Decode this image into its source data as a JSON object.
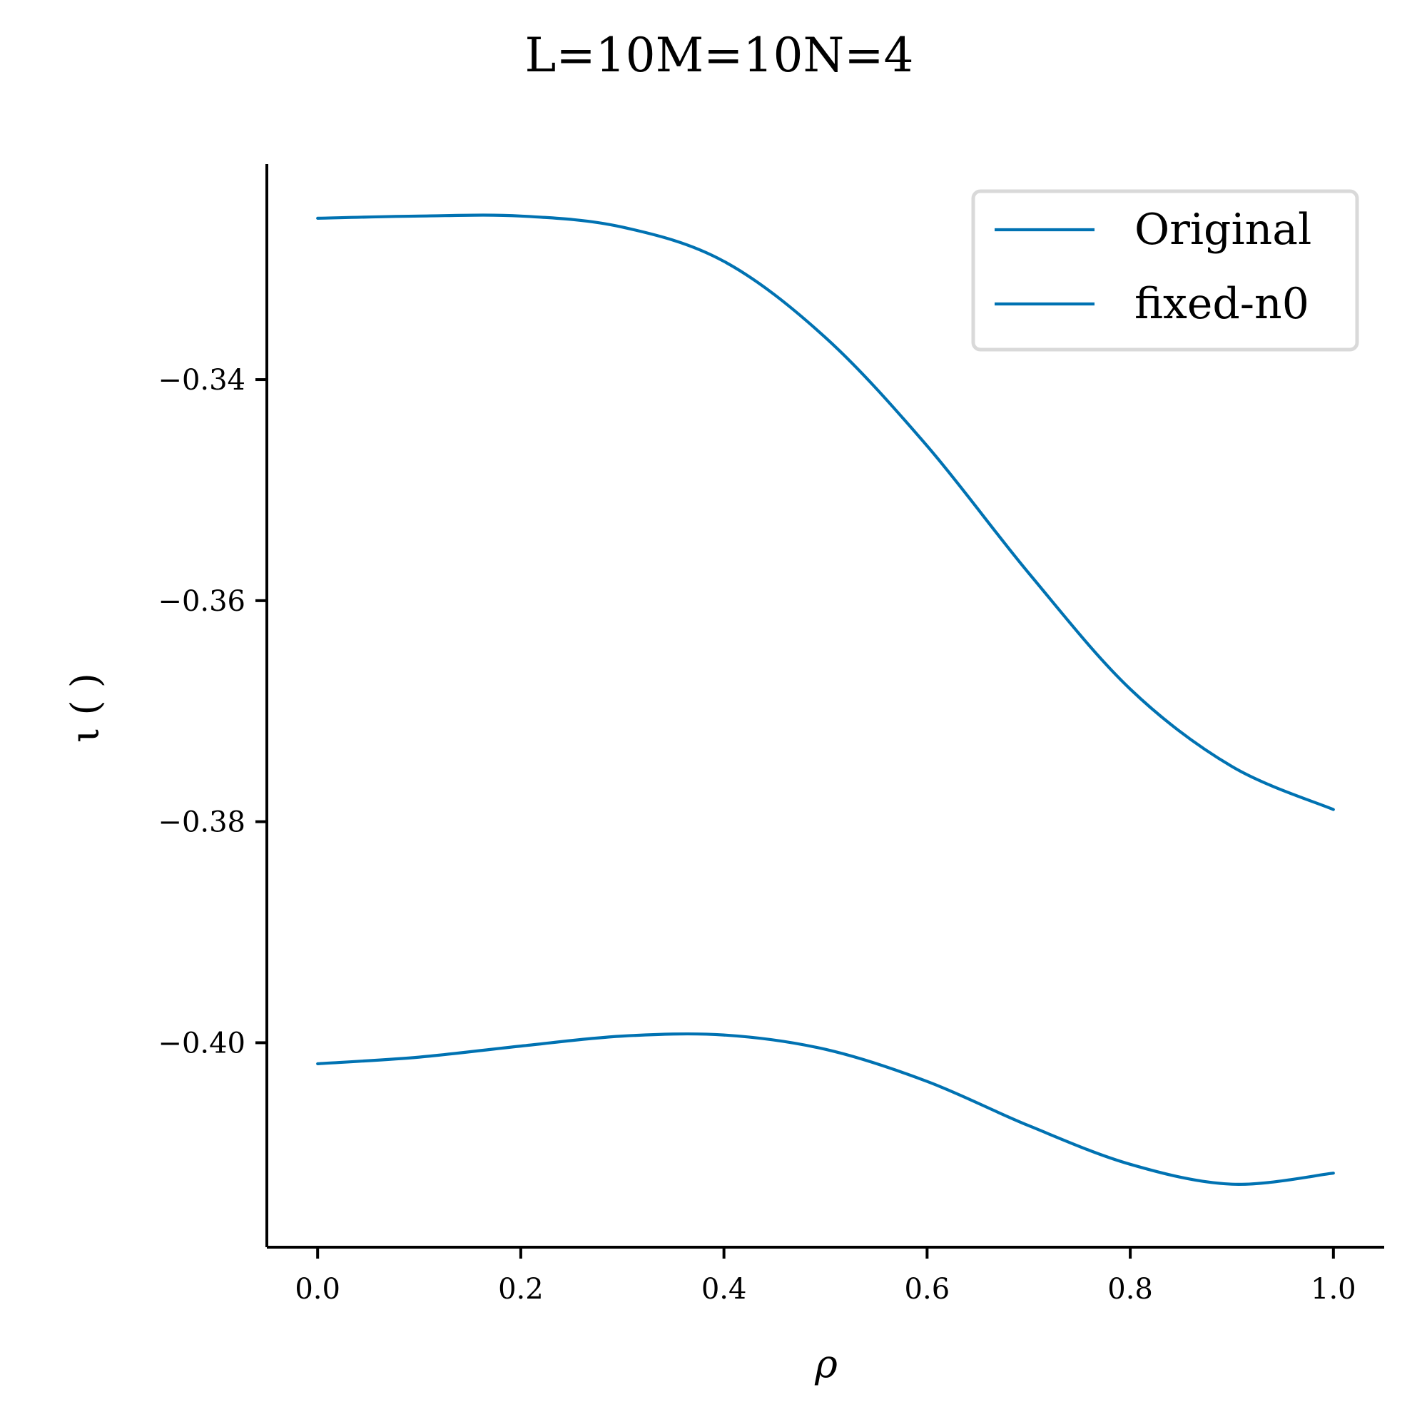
{
  "chart_data": {
    "type": "line",
    "title": "L=10M=10N=4",
    "xlabel": "ρ",
    "ylabel": "ι ( )",
    "xlim": [
      -0.05,
      1.05
    ],
    "ylim": [
      -0.4185,
      -0.3205
    ],
    "xticks": [
      0.0,
      0.2,
      0.4,
      0.6,
      0.8,
      1.0
    ],
    "xtick_labels": [
      "0.0",
      "0.2",
      "0.4",
      "0.6",
      "0.8",
      "1.0"
    ],
    "yticks": [
      -0.34,
      -0.36,
      -0.38,
      -0.4
    ],
    "ytick_labels": [
      "−0.34",
      "−0.36",
      "−0.38",
      "−0.40"
    ],
    "grid": false,
    "legend_position": "top-right",
    "series": [
      {
        "name": "Original",
        "color": "#0072b2",
        "x": [
          0.0,
          0.1,
          0.2,
          0.3,
          0.4,
          0.5,
          0.6,
          0.7,
          0.8,
          0.9,
          1.0
        ],
        "y": [
          -0.3254,
          -0.3252,
          -0.3252,
          -0.3262,
          -0.3293,
          -0.3362,
          -0.346,
          -0.3575,
          -0.368,
          -0.375,
          -0.3789
        ]
      },
      {
        "name": "fixed-n0",
        "color": "#0072b2",
        "x": [
          0.0,
          0.1,
          0.2,
          0.3,
          0.4,
          0.5,
          0.6,
          0.7,
          0.8,
          0.9,
          1.0
        ],
        "y": [
          -0.4019,
          -0.4013,
          -0.4003,
          -0.3994,
          -0.3993,
          -0.4006,
          -0.4035,
          -0.4075,
          -0.411,
          -0.4128,
          -0.4118
        ]
      }
    ]
  }
}
